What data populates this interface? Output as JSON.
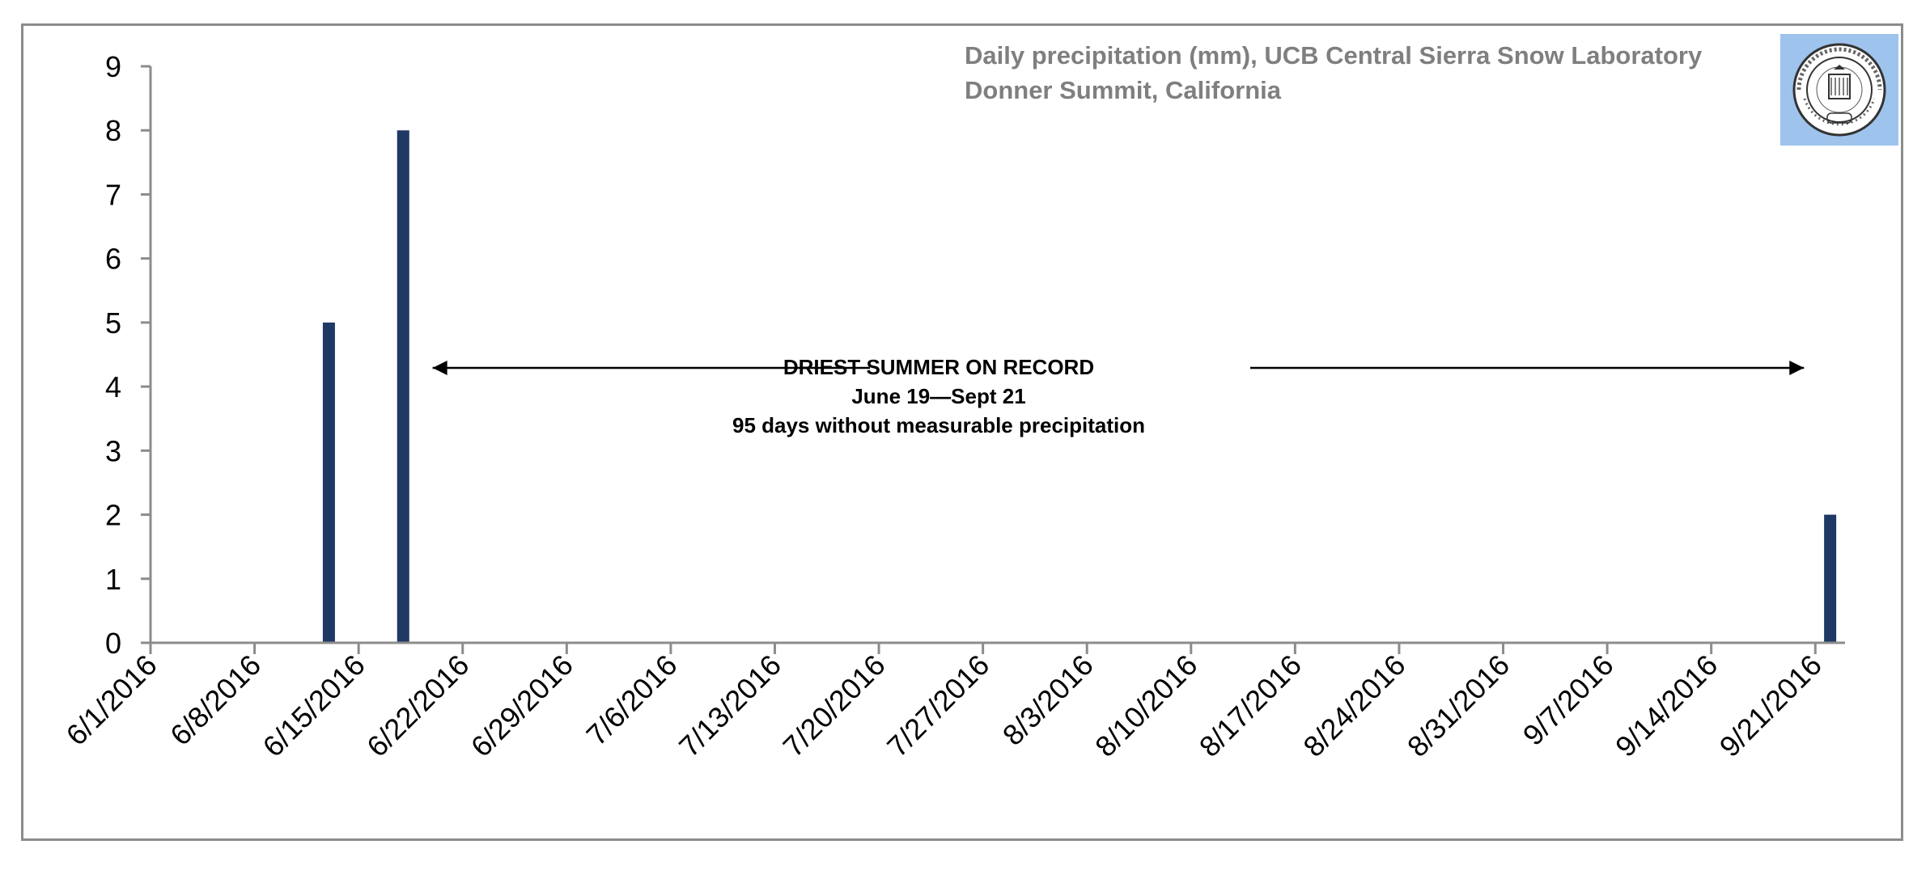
{
  "chart_data": {
    "type": "bar",
    "title": "Daily precipitation (mm), UCB Central Sierra Snow Laboratory",
    "subtitle": "Donner Summit, California",
    "xlabel": "",
    "ylabel": "",
    "ylim": [
      0,
      9
    ],
    "yticks": [
      "0",
      "1",
      "2",
      "3",
      "4",
      "5",
      "6",
      "7",
      "8",
      "9"
    ],
    "x_range": [
      "2016-06-01",
      "2016-09-23"
    ],
    "xtick_dates": [
      "2016-06-01",
      "2016-06-08",
      "2016-06-15",
      "2016-06-22",
      "2016-06-29",
      "2016-07-06",
      "2016-07-13",
      "2016-07-20",
      "2016-07-27",
      "2016-08-03",
      "2016-08-10",
      "2016-08-17",
      "2016-08-24",
      "2016-08-31",
      "2016-09-07",
      "2016-09-14",
      "2016-09-21"
    ],
    "xtick_labels": [
      "6/1/2016",
      "6/8/2016",
      "6/15/2016",
      "6/22/2016",
      "6/29/2016",
      "7/6/2016",
      "7/13/2016",
      "7/20/2016",
      "7/27/2016",
      "8/3/2016",
      "8/10/2016",
      "8/17/2016",
      "8/24/2016",
      "8/31/2016",
      "9/7/2016",
      "9/14/2016",
      "9/21/2016"
    ],
    "points": [
      {
        "date": "2016-06-13",
        "value": 5
      },
      {
        "date": "2016-06-18",
        "value": 8
      },
      {
        "date": "2016-09-22",
        "value": 2
      }
    ],
    "bar_color": "#1f3864",
    "grid": false,
    "legend": "none",
    "annotation": {
      "lines": [
        "DRIEST SUMMER ON RECORD",
        "June 19—Sept 21",
        "95 days without measurable precipitation"
      ],
      "arrow_start": "2016-06-19",
      "arrow_end": "2016-09-21"
    }
  },
  "logo": {
    "name": "university-of-california-seal",
    "text": "THE UNIVERSITY OF CALIFORNIA 1868",
    "background": "#9ec3ec"
  }
}
